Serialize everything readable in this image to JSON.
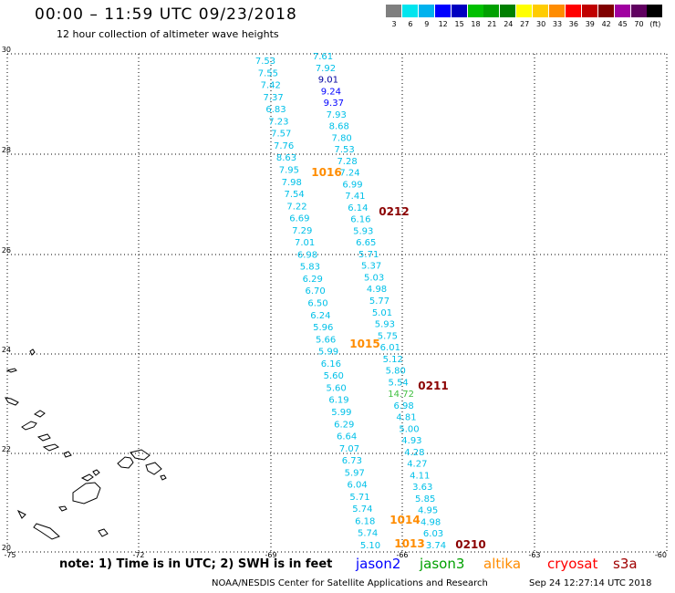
{
  "title": "00:00 – 11:59 UTC 09/23/2018",
  "subtitle": "12 hour collection of altimeter wave heights",
  "legend": {
    "colors": [
      "#7f7f7f",
      "#00e5ee",
      "#00b2ee",
      "#0000ff",
      "#0000c0",
      "#00c000",
      "#00a000",
      "#008000",
      "#ffff00",
      "#ffcc00",
      "#ff8c00",
      "#ff0000",
      "#c00000",
      "#800000",
      "#a000a0",
      "#600060",
      "#000000"
    ],
    "labels": [
      "3",
      "6",
      "9",
      "12",
      "15",
      "18",
      "21",
      "24",
      "27",
      "30",
      "33",
      "36",
      "39",
      "42",
      "45",
      "70",
      "(ft)"
    ]
  },
  "axes": {
    "x_ticks": [
      "-75",
      "-72",
      "-69",
      "-66",
      "-63",
      "-60"
    ],
    "y_ticks": [
      "30",
      "28",
      "26",
      "24",
      "22",
      "20"
    ]
  },
  "track_cyan": {
    "color": "#00c0e8",
    "values": [
      "7.53",
      "7.55",
      "7.42",
      "7.37",
      "6.83",
      "7.23",
      "7.57",
      "7.76",
      "8.63",
      "7.95",
      "7.98",
      "7.54",
      "7.22",
      "6.69",
      "7.29",
      "7.01",
      "6.98",
      "5.83",
      "6.29",
      "6.70",
      "6.50",
      "6.24",
      "5.96",
      "5.66",
      "5.99",
      "6.16",
      "5.60",
      "5.60",
      "6.19",
      "5.99",
      "6.29",
      "6.64",
      "7.07",
      "6.73",
      "5.97",
      "6.04",
      "5.71",
      "5.74",
      "6.18",
      "5.74",
      "5.10"
    ]
  },
  "track_mixed": {
    "values": [
      "7.61",
      "7.92",
      "9.01",
      "9.24",
      "9.37",
      "7.93",
      "8.68",
      "7.80",
      "7.53",
      "7.28",
      "7.24",
      "6.99",
      "7.41",
      "6.14",
      "6.16",
      "5.93",
      "6.65",
      "5.71",
      "5.37",
      "5.03",
      "4.98",
      "5.77",
      "5.01",
      "5.93",
      "5.75",
      "6.01",
      "5.12",
      "5.80",
      "5.54",
      "14.72",
      "6.98",
      "4.81",
      "5.00",
      "4.93",
      "4.28",
      "4.27",
      "4.11",
      "3.63",
      "5.85",
      "4.95",
      "4.98",
      "6.03",
      "3.74"
    ],
    "colors": [
      "#00c0e8",
      "#00c0e8",
      "#0000a0",
      "#0000ff",
      "#0000ff",
      "#00c0e8",
      "#00c0e8",
      "#00c0e8",
      "#00c0e8",
      "#00c0e8",
      "#00c0e8",
      "#00c0e8",
      "#00c0e8",
      "#00c0e8",
      "#00c0e8",
      "#00c0e8",
      "#00c0e8",
      "#00c0e8",
      "#00c0e8",
      "#00c0e8",
      "#00c0e8",
      "#00c0e8",
      "#00c0e8",
      "#00c0e8",
      "#00c0e8",
      "#00c0e8",
      "#00c0e8",
      "#00c0e8",
      "#00c0e8",
      "#40c040",
      "#00c0e8",
      "#00c0e8",
      "#00c0e8",
      "#00c0e8",
      "#00c0e8",
      "#00c0e8",
      "#00c0e8",
      "#00c0e8",
      "#00c0e8",
      "#00c0e8",
      "#00c0e8",
      "#00c0e8",
      "#00c0e8"
    ]
  },
  "pass_times": [
    {
      "label": "1016",
      "color": "#ff8c00"
    },
    {
      "label": "0212",
      "color": "#8b0000"
    },
    {
      "label": "1015",
      "color": "#ff8c00"
    },
    {
      "label": "0211",
      "color": "#8b0000"
    },
    {
      "label": "1014",
      "color": "#ff8c00"
    },
    {
      "label": "1013",
      "color": "#ff8c00"
    },
    {
      "label": "0210",
      "color": "#8b0000"
    }
  ],
  "footer": {
    "note": "note:  1) Time is in UTC;  2) SWH is in feet",
    "satellites": [
      {
        "name": "jason2",
        "color": "#0000ff"
      },
      {
        "name": "jason3",
        "color": "#00a000"
      },
      {
        "name": "altika",
        "color": "#ff8c00"
      },
      {
        "name": "cryosat",
        "color": "#ff0000"
      },
      {
        "name": "s3a",
        "color": "#a00000"
      }
    ],
    "credit": "NOAA/NESDIS Center for Satellite Applications and Research",
    "timestamp": "Sep 24 12:27:14 UTC 2018"
  }
}
